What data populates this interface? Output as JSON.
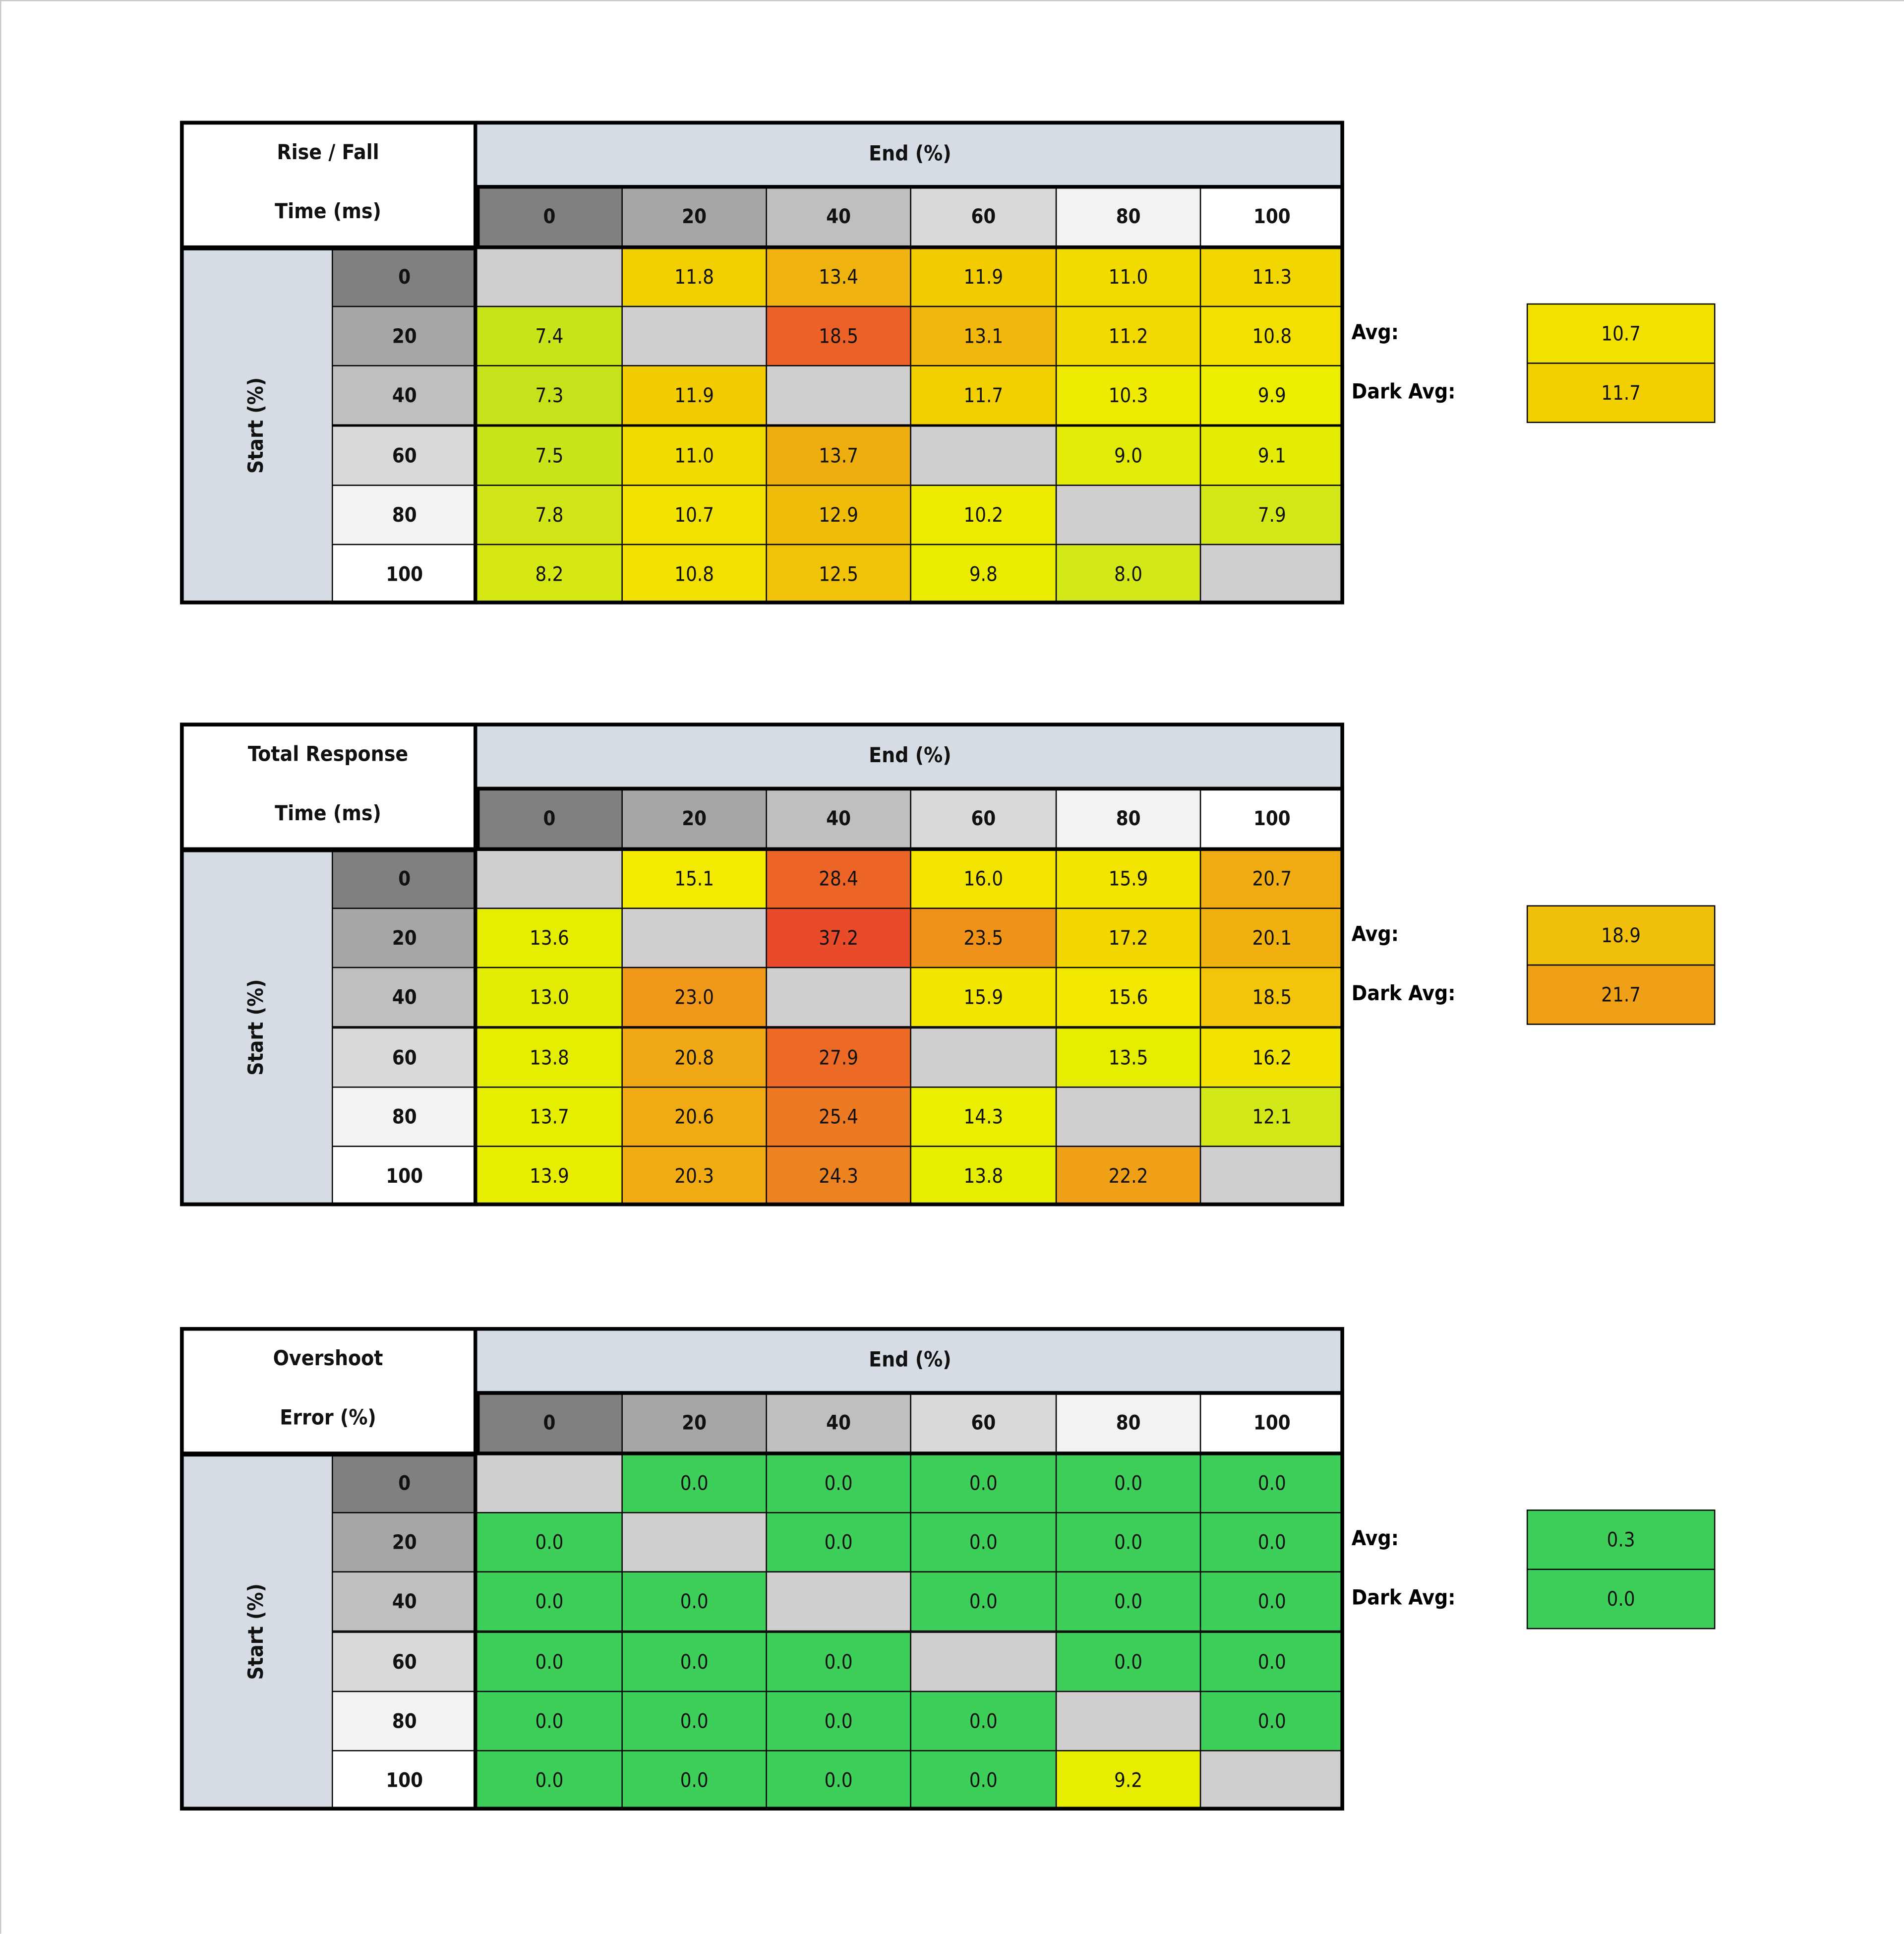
{
  "tables": [
    {
      "title": [
        "Rise / Fall",
        "Time (ms)"
      ],
      "end_label": "End (%)",
      "start_label": "Start (%)",
      "columns": [
        "0",
        "20",
        "40",
        "60",
        "80",
        "100"
      ],
      "rows": [
        "0",
        "20",
        "40",
        "60",
        "80",
        "100"
      ],
      "cells": [
        [
          null,
          "11.8",
          "13.4",
          "11.9",
          "11.0",
          "11.3"
        ],
        [
          "7.4",
          null,
          "18.5",
          "13.1",
          "11.2",
          "10.8"
        ],
        [
          "7.3",
          "11.9",
          null,
          "11.7",
          "10.3",
          "9.9"
        ],
        [
          "7.5",
          "11.0",
          "13.7",
          null,
          "9.0",
          "9.1"
        ],
        [
          "7.8",
          "10.7",
          "12.9",
          "10.2",
          null,
          "7.9"
        ],
        [
          "8.2",
          "10.8",
          "12.5",
          "9.8",
          "8.0",
          null
        ]
      ],
      "cell_colors": [
        [
          null,
          "#f2cf00",
          "#efb20f",
          "#f2cc00",
          "#f2dc00",
          "#f2d600"
        ],
        [
          "#c8e41a",
          null,
          "#ec6127",
          "#f0b80c",
          "#f2da00",
          "#f2e000"
        ],
        [
          "#c6e21a",
          "#f2cc00",
          null,
          "#f2d000",
          "#eeea00",
          "#ecee00"
        ],
        [
          "#c9e41a",
          "#f2dc00",
          "#efae10",
          null,
          "#e2ec06",
          "#e4ec06"
        ],
        [
          "#d0e618",
          "#f2e200",
          "#f0bc0a",
          "#eeea00",
          null,
          "#d2e818"
        ],
        [
          "#d6e814",
          "#f2e000",
          "#f0c208",
          "#eaec00",
          "#d2e818",
          null
        ]
      ],
      "avg_label": "Avg:",
      "avg": "10.7",
      "avg_color": "#f2e200",
      "dark_avg_label": "Dark Avg:",
      "dark_avg": "11.7",
      "dark_avg_color": "#f2d000"
    },
    {
      "title": [
        "Total Response",
        "Time (ms)"
      ],
      "end_label": "End (%)",
      "start_label": "Start (%)",
      "columns": [
        "0",
        "20",
        "40",
        "60",
        "80",
        "100"
      ],
      "rows": [
        "0",
        "20",
        "40",
        "60",
        "80",
        "100"
      ],
      "cells": [
        [
          null,
          "15.1",
          "28.4",
          "16.0",
          "15.9",
          "20.7"
        ],
        [
          "13.6",
          null,
          "37.2",
          "23.5",
          "17.2",
          "20.1"
        ],
        [
          "13.0",
          "23.0",
          null,
          "15.9",
          "15.6",
          "18.5"
        ],
        [
          "13.8",
          "20.8",
          "27.9",
          null,
          "13.5",
          "16.2"
        ],
        [
          "13.7",
          "20.6",
          "25.4",
          "14.3",
          null,
          "12.1"
        ],
        [
          "13.9",
          "20.3",
          "24.3",
          "13.8",
          "22.2",
          null
        ]
      ],
      "cell_colors": [
        [
          null,
          "#f2ea00",
          "#ec6526",
          "#f2e400",
          "#f2e600",
          "#f0aa12"
        ],
        [
          "#e6ee00",
          null,
          "#e84a2a",
          "#ef9219",
          "#f2d600",
          "#f0b010"
        ],
        [
          "#e2ec04",
          "#ef981a",
          null,
          "#f2e600",
          "#f2e800",
          "#f2c40a"
        ],
        [
          "#e6ee00",
          "#f0a814",
          "#ec6a26",
          null,
          "#e6ee00",
          "#f2e200"
        ],
        [
          "#e6ee00",
          "#f0aa14",
          "#ed7a22",
          "#eaee00",
          null,
          "#d2e818"
        ],
        [
          "#e8ee00",
          "#f0ac12",
          "#ed8220",
          "#e6ee00",
          "#efa016",
          null
        ]
      ],
      "avg_label": "Avg:",
      "avg": "18.9",
      "avg_color": "#f0c00c",
      "dark_avg_label": "Dark Avg:",
      "dark_avg": "21.7",
      "dark_avg_color": "#efa016"
    },
    {
      "title": [
        "Overshoot",
        "Error (%)"
      ],
      "end_label": "End (%)",
      "start_label": "Start (%)",
      "columns": [
        "0",
        "20",
        "40",
        "60",
        "80",
        "100"
      ],
      "rows": [
        "0",
        "20",
        "40",
        "60",
        "80",
        "100"
      ],
      "cells": [
        [
          null,
          "0.0",
          "0.0",
          "0.0",
          "0.0",
          "0.0"
        ],
        [
          "0.0",
          null,
          "0.0",
          "0.0",
          "0.0",
          "0.0"
        ],
        [
          "0.0",
          "0.0",
          null,
          "0.0",
          "0.0",
          "0.0"
        ],
        [
          "0.0",
          "0.0",
          "0.0",
          null,
          "0.0",
          "0.0"
        ],
        [
          "0.0",
          "0.0",
          "0.0",
          "0.0",
          null,
          "0.0"
        ],
        [
          "0.0",
          "0.0",
          "0.0",
          "0.0",
          "9.2",
          null
        ]
      ],
      "cell_colors": [
        [
          null,
          "#3ecf5a",
          "#3ecf5a",
          "#3ecf5a",
          "#3ecf5a",
          "#3ecf5a"
        ],
        [
          "#3ecf5a",
          null,
          "#3ecf5a",
          "#3ecf5a",
          "#3ecf5a",
          "#3ecf5a"
        ],
        [
          "#3ecf5a",
          "#3ecf5a",
          null,
          "#3ecf5a",
          "#3ecf5a",
          "#3ecf5a"
        ],
        [
          "#3ecf5a",
          "#3ecf5a",
          "#3ecf5a",
          null,
          "#3ecf5a",
          "#3ecf5a"
        ],
        [
          "#3ecf5a",
          "#3ecf5a",
          "#3ecf5a",
          "#3ecf5a",
          null,
          "#3ecf5a"
        ],
        [
          "#3ecf5a",
          "#3ecf5a",
          "#3ecf5a",
          "#3ecf5a",
          "#e8ee00",
          null
        ]
      ],
      "avg_label": "Avg:",
      "avg": "0.3",
      "avg_color": "#3ecf5a",
      "dark_avg_label": "Dark Avg:",
      "dark_avg": "0.0",
      "dark_avg_color": "#3ecf5a"
    }
  ]
}
